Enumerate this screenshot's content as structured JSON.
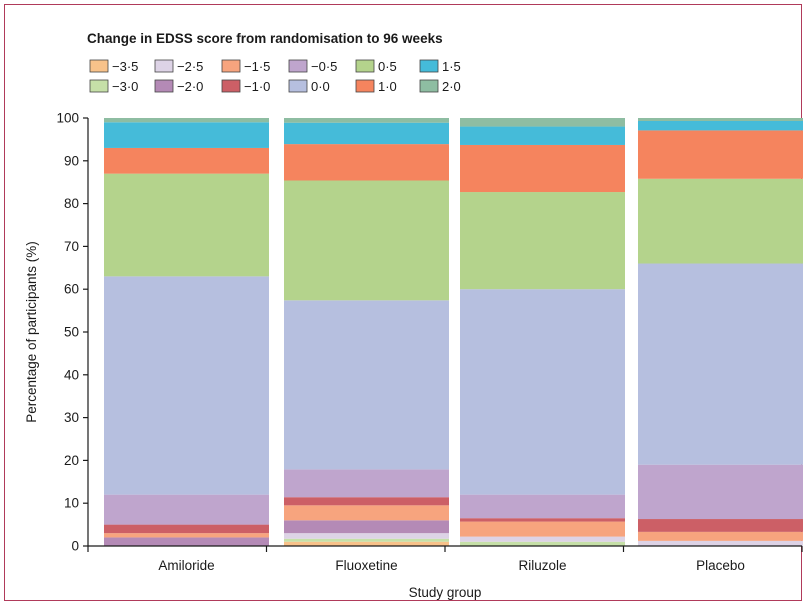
{
  "chart_data": {
    "type": "bar",
    "stacked": true,
    "title": "Change in EDSS score from randomisation to 96 weeks",
    "xlabel": "Study group",
    "ylabel": "Percentage of participants (%)",
    "ylim": [
      0,
      100
    ],
    "yticks": [
      "0",
      "10",
      "20",
      "30",
      "40",
      "50",
      "60",
      "70",
      "80",
      "90",
      "100"
    ],
    "grid": false,
    "legend_position": "top",
    "categories": [
      "Amiloride",
      "Fluoxetine",
      "Riluzole",
      "Placebo"
    ],
    "series": [
      {
        "name": "−3·5",
        "color": "#f8c28a",
        "values": [
          0,
          1.0,
          0,
          0
        ]
      },
      {
        "name": "−3·0",
        "color": "#c6e0a8",
        "values": [
          0,
          0.7,
          1.0,
          0
        ]
      },
      {
        "name": "−2·5",
        "color": "#ddd3e6",
        "values": [
          0,
          1.3,
          1.2,
          1.2
        ]
      },
      {
        "name": "−2·0",
        "color": "#b48ab6",
        "values": [
          2.0,
          3.0,
          0,
          0
        ]
      },
      {
        "name": "−1·5",
        "color": "#f7a47e",
        "values": [
          1.0,
          3.5,
          3.5,
          2.1
        ]
      },
      {
        "name": "−1·0",
        "color": "#cc5f66",
        "values": [
          2.0,
          1.9,
          0.8,
          3.0
        ]
      },
      {
        "name": "−0·5",
        "color": "#bfa5cd",
        "values": [
          7.0,
          6.5,
          5.5,
          12.7
        ]
      },
      {
        "name": "0·0",
        "color": "#b6bfdf",
        "values": [
          51.0,
          39.5,
          48.0,
          47.0
        ]
      },
      {
        "name": "0·5",
        "color": "#b4d38c",
        "values": [
          24.0,
          28.0,
          22.7,
          19.8
        ]
      },
      {
        "name": "1·0",
        "color": "#f5845e",
        "values": [
          6.0,
          8.5,
          11.0,
          11.3
        ]
      },
      {
        "name": "1·5",
        "color": "#45bbd9",
        "values": [
          6.0,
          5.0,
          4.3,
          2.2
        ]
      },
      {
        "name": "2·0",
        "color": "#8ebda2",
        "values": [
          1.0,
          1.1,
          2.0,
          0.7
        ]
      }
    ]
  }
}
